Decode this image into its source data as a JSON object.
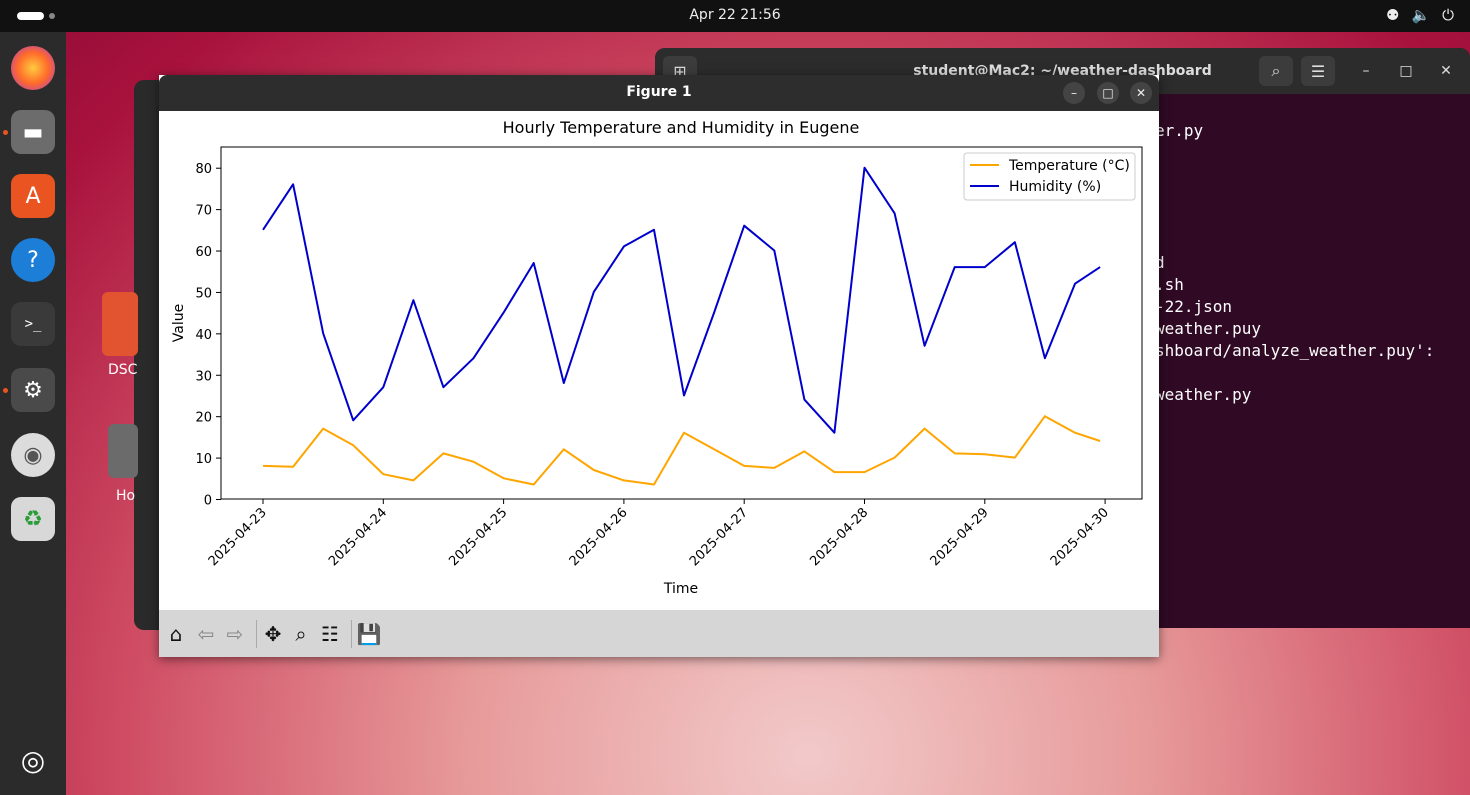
{
  "topbar": {
    "clock": "Apr 22  21:56",
    "tray_icons": [
      "network-icon",
      "volume-icon",
      "power-icon"
    ]
  },
  "dock": {
    "items": [
      "firefox",
      "files",
      "app-center",
      "help",
      "terminal",
      "settings",
      "disc",
      "trash",
      "show-apps"
    ]
  },
  "desktop": {
    "icons": [
      {
        "label": "DSC"
      },
      {
        "label": "Ho"
      }
    ]
  },
  "terminal": {
    "title": "student@Mac2: ~/weather-dashboard",
    "lines": [
      "er.py",
      "d",
      ".sh",
      "-22.json",
      "weather.puy",
      "shboard/analyze_weather.puy':",
      "weather.py"
    ]
  },
  "figure": {
    "title": "Figure 1",
    "toolbar": [
      "home-icon",
      "back-arrow-icon",
      "forward-arrow-icon",
      "pan-icon",
      "zoom-icon",
      "configure-icon",
      "save-icon"
    ]
  },
  "chart_data": {
    "type": "line",
    "title": "Hourly Temperature and Humidity in Eugene",
    "xlabel": "Time",
    "ylabel": "Value",
    "xlim": [
      "2025-04-23",
      "2025-04-30"
    ],
    "ylim": [
      0,
      85
    ],
    "x_ticks": [
      "2025-04-23",
      "2025-04-24",
      "2025-04-25",
      "2025-04-26",
      "2025-04-27",
      "2025-04-28",
      "2025-04-29",
      "2025-04-30"
    ],
    "y_ticks": [
      0,
      10,
      20,
      30,
      40,
      50,
      60,
      70,
      80
    ],
    "legend": "top-right",
    "grid": false,
    "series": [
      {
        "name": "Temperature (°C)",
        "color": "#ffa500",
        "points": [
          [
            "2025-04-23 00:00",
            8
          ],
          [
            "2025-04-23 06:00",
            7.8
          ],
          [
            "2025-04-23 12:00",
            17
          ],
          [
            "2025-04-23 18:00",
            13
          ],
          [
            "2025-04-24 00:00",
            6
          ],
          [
            "2025-04-24 06:00",
            4.5
          ],
          [
            "2025-04-24 12:00",
            11
          ],
          [
            "2025-04-24 18:00",
            9
          ],
          [
            "2025-04-25 00:00",
            5
          ],
          [
            "2025-04-25 06:00",
            3.5
          ],
          [
            "2025-04-25 12:00",
            12
          ],
          [
            "2025-04-25 18:00",
            7
          ],
          [
            "2025-04-26 00:00",
            4.5
          ],
          [
            "2025-04-26 06:00",
            3.5
          ],
          [
            "2025-04-26 12:00",
            16
          ],
          [
            "2025-04-26 18:00",
            12
          ],
          [
            "2025-04-27 00:00",
            8
          ],
          [
            "2025-04-27 06:00",
            7.5
          ],
          [
            "2025-04-27 12:00",
            11.5
          ],
          [
            "2025-04-27 18:00",
            6.5
          ],
          [
            "2025-04-28 00:00",
            6.5
          ],
          [
            "2025-04-28 06:00",
            10
          ],
          [
            "2025-04-28 12:00",
            17
          ],
          [
            "2025-04-28 18:00",
            11
          ],
          [
            "2025-04-29 00:00",
            10.8
          ],
          [
            "2025-04-29 06:00",
            10
          ],
          [
            "2025-04-29 12:00",
            20
          ],
          [
            "2025-04-29 18:00",
            16
          ],
          [
            "2025-04-29 23:00",
            14
          ]
        ]
      },
      {
        "name": "Humidity (%)",
        "color": "#0000cc",
        "points": [
          [
            "2025-04-23 00:00",
            65
          ],
          [
            "2025-04-23 06:00",
            76
          ],
          [
            "2025-04-23 12:00",
            40
          ],
          [
            "2025-04-23 18:00",
            19
          ],
          [
            "2025-04-24 00:00",
            27
          ],
          [
            "2025-04-24 06:00",
            48
          ],
          [
            "2025-04-24 12:00",
            27
          ],
          [
            "2025-04-24 18:00",
            34
          ],
          [
            "2025-04-25 00:00",
            45
          ],
          [
            "2025-04-25 06:00",
            57
          ],
          [
            "2025-04-25 12:00",
            28
          ],
          [
            "2025-04-25 18:00",
            50
          ],
          [
            "2025-04-26 00:00",
            61
          ],
          [
            "2025-04-26 06:00",
            65
          ],
          [
            "2025-04-26 12:00",
            25
          ],
          [
            "2025-04-26 18:00",
            45
          ],
          [
            "2025-04-27 00:00",
            66
          ],
          [
            "2025-04-27 06:00",
            60
          ],
          [
            "2025-04-27 12:00",
            24
          ],
          [
            "2025-04-27 18:00",
            16
          ],
          [
            "2025-04-28 00:00",
            80
          ],
          [
            "2025-04-28 06:00",
            69
          ],
          [
            "2025-04-28 12:00",
            37
          ],
          [
            "2025-04-28 18:00",
            56
          ],
          [
            "2025-04-29 00:00",
            56
          ],
          [
            "2025-04-29 06:00",
            62
          ],
          [
            "2025-04-29 12:00",
            34
          ],
          [
            "2025-04-29 18:00",
            52
          ],
          [
            "2025-04-29 23:00",
            56
          ]
        ]
      }
    ]
  }
}
